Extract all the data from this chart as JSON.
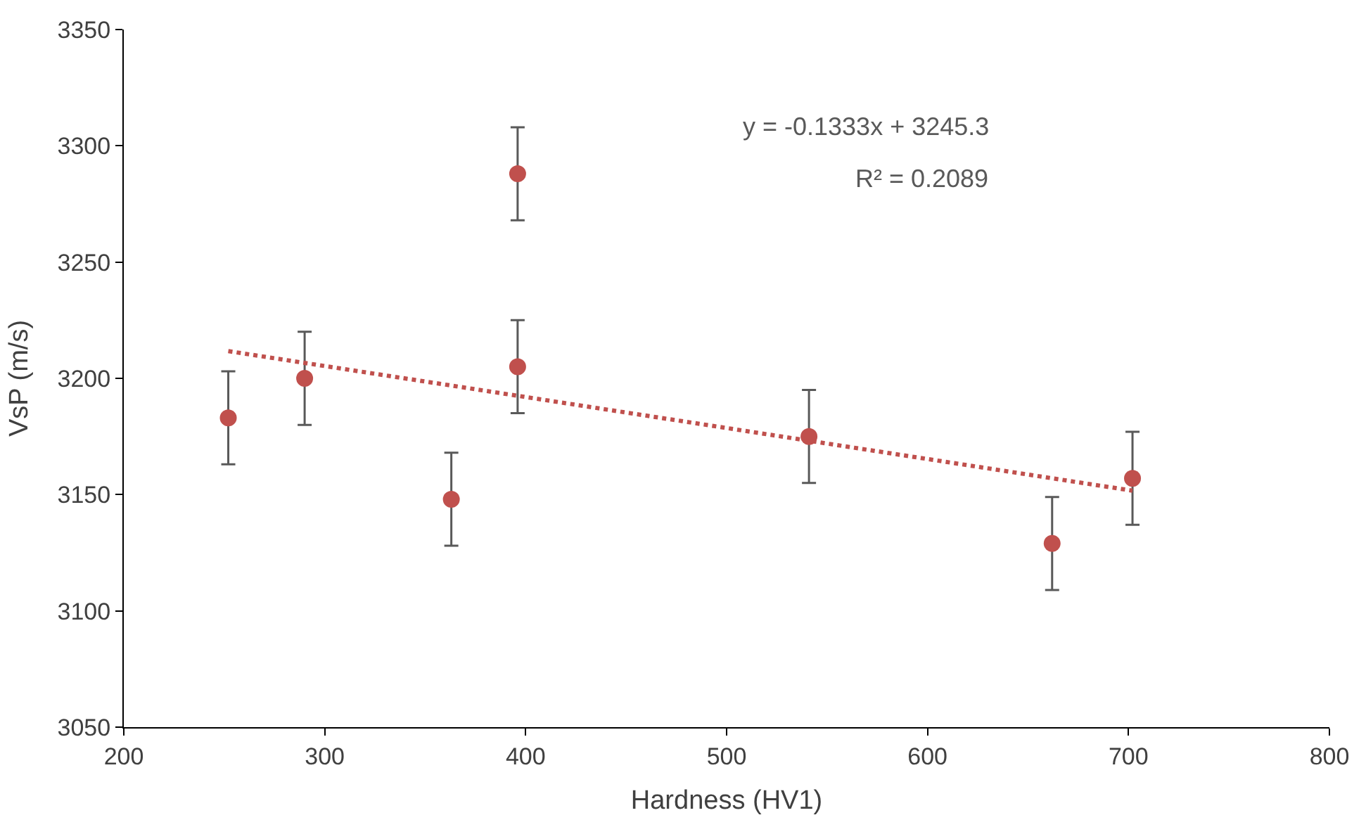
{
  "chart_data": {
    "type": "scatter",
    "xlabel": "Hardness (HV1)",
    "ylabel": "VsP (m/s)",
    "xlim": [
      200,
      800
    ],
    "xticks": [
      200,
      300,
      400,
      500,
      600,
      700,
      800
    ],
    "ylim": [
      3050,
      3350
    ],
    "yticks": [
      3050,
      3100,
      3150,
      3200,
      3250,
      3300,
      3350
    ],
    "marker": "circle",
    "series": [
      {
        "color": "#c0504d",
        "x": [
          252,
          290,
          363,
          396,
          396,
          541,
          662,
          702
        ],
        "values": [
          3183,
          3200,
          3148,
          3288,
          3205,
          3175,
          3129,
          3157
        ],
        "errors": [
          20,
          20,
          20,
          20,
          20,
          20,
          20,
          20
        ]
      },
      {
        "type": "line",
        "color": "#c0504d",
        "line_style": "dotted",
        "marker": "none",
        "x": [
          252,
          702
        ],
        "values": [
          3211.7,
          3151.7
        ]
      }
    ],
    "annotations": [
      "y = -0.1333x + 3245.3",
      "R² = 0.2089"
    ]
  }
}
